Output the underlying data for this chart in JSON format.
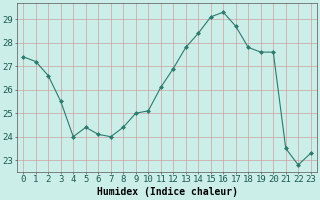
{
  "x": [
    0,
    1,
    2,
    3,
    4,
    5,
    6,
    7,
    8,
    9,
    10,
    11,
    12,
    13,
    14,
    15,
    16,
    17,
    18,
    19,
    20,
    21,
    22,
    23
  ],
  "y": [
    27.4,
    27.2,
    26.6,
    25.5,
    24.0,
    24.4,
    24.1,
    24.0,
    24.4,
    25.0,
    25.1,
    26.1,
    26.9,
    27.8,
    28.4,
    29.1,
    29.3,
    28.7,
    27.8,
    27.6,
    27.6,
    23.5,
    22.8,
    23.3
  ],
  "line_color": "#2d7a6e",
  "marker": "D",
  "marker_size": 2.0,
  "background_color": "#cceee8",
  "grid_color": "#cc9999",
  "xlabel": "Humidex (Indice chaleur)",
  "ylim": [
    22.5,
    29.7
  ],
  "yticks": [
    23,
    24,
    25,
    26,
    27,
    28,
    29
  ],
  "xlim": [
    -0.5,
    23.5
  ],
  "xlabel_fontsize": 7,
  "tick_fontsize": 6.5
}
